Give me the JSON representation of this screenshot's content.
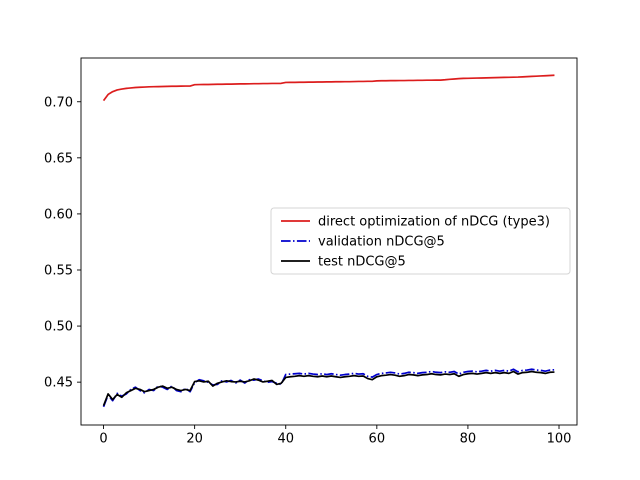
{
  "figure": {
    "background": "#ffffff",
    "axes_color": "#000000"
  },
  "chart_data": {
    "type": "line",
    "title": "",
    "xlabel": "",
    "ylabel": "",
    "grid": false,
    "xlim": [
      -4.95,
      103.95
    ],
    "ylim": [
      0.4118,
      0.739
    ],
    "x_ticks": [
      0,
      20,
      40,
      60,
      80,
      100
    ],
    "x_tick_labels": [
      "0",
      "20",
      "40",
      "60",
      "80",
      "100"
    ],
    "y_ticks": [
      0.45,
      0.5,
      0.55,
      0.6,
      0.65,
      0.7
    ],
    "y_tick_labels": [
      "0.45",
      "0.50",
      "0.55",
      "0.60",
      "0.65",
      "0.70"
    ],
    "legend": {
      "position": "center-right",
      "border_color": "#d5d5d5",
      "background": "#ffffff"
    },
    "x": [
      0,
      1,
      2,
      3,
      4,
      5,
      6,
      7,
      8,
      9,
      10,
      11,
      12,
      13,
      14,
      15,
      16,
      17,
      18,
      19,
      20,
      21,
      22,
      23,
      24,
      25,
      26,
      27,
      28,
      29,
      30,
      31,
      32,
      33,
      34,
      35,
      36,
      37,
      38,
      39,
      40,
      41,
      42,
      43,
      44,
      45,
      46,
      47,
      48,
      49,
      50,
      51,
      52,
      53,
      54,
      55,
      56,
      57,
      58,
      59,
      60,
      61,
      62,
      63,
      64,
      65,
      66,
      67,
      68,
      69,
      70,
      71,
      72,
      73,
      74,
      75,
      76,
      77,
      78,
      79,
      80,
      81,
      82,
      83,
      84,
      85,
      86,
      87,
      88,
      89,
      90,
      91,
      92,
      93,
      94,
      95,
      96,
      97,
      98,
      99
    ],
    "series": [
      {
        "name": "direct optimization of nDCG (type3)",
        "color": "#dc1d1d",
        "style": "solid",
        "values": [
          0.701,
          0.7065,
          0.709,
          0.7105,
          0.7113,
          0.7119,
          0.7123,
          0.7127,
          0.7129,
          0.7131,
          0.7133,
          0.7134,
          0.7135,
          0.7136,
          0.7137,
          0.7138,
          0.7138,
          0.7139,
          0.714,
          0.714,
          0.7152,
          0.7153,
          0.7154,
          0.7154,
          0.7155,
          0.7156,
          0.7156,
          0.7157,
          0.7157,
          0.7158,
          0.7159,
          0.7159,
          0.716,
          0.7161,
          0.7161,
          0.7162,
          0.7162,
          0.7163,
          0.7163,
          0.7164,
          0.7172,
          0.7173,
          0.7173,
          0.7174,
          0.7174,
          0.7175,
          0.7175,
          0.7176,
          0.7176,
          0.7177,
          0.7177,
          0.7178,
          0.7178,
          0.7179,
          0.7179,
          0.718,
          0.7181,
          0.7181,
          0.7182,
          0.7182,
          0.7186,
          0.7187,
          0.7187,
          0.7188,
          0.7188,
          0.7189,
          0.7189,
          0.719,
          0.719,
          0.7191,
          0.7191,
          0.7192,
          0.7192,
          0.7193,
          0.7193,
          0.7196,
          0.72,
          0.7203,
          0.7206,
          0.7208,
          0.7209,
          0.721,
          0.7211,
          0.7212,
          0.7213,
          0.7214,
          0.7215,
          0.7216,
          0.7217,
          0.7218,
          0.7219,
          0.722,
          0.7222,
          0.7224,
          0.7226,
          0.7228,
          0.723,
          0.7232,
          0.7234,
          0.7236
        ]
      },
      {
        "name": "validation nDCG@5",
        "color": "#0000cd",
        "style": "dashdot",
        "values": [
          0.428,
          0.4385,
          0.4335,
          0.44,
          0.4375,
          0.4395,
          0.4435,
          0.4455,
          0.4425,
          0.4405,
          0.4435,
          0.4425,
          0.4465,
          0.4455,
          0.4435,
          0.4465,
          0.4425,
          0.4415,
          0.4445,
          0.4415,
          0.4495,
          0.4522,
          0.4512,
          0.4498,
          0.4475,
          0.448,
          0.4512,
          0.4502,
          0.4515,
          0.4492,
          0.4518,
          0.4492,
          0.4522,
          0.4518,
          0.4528,
          0.4512,
          0.4498,
          0.4505,
          0.449,
          0.448,
          0.4568,
          0.4572,
          0.4575,
          0.4578,
          0.4572,
          0.4578,
          0.4572,
          0.4568,
          0.4575,
          0.4568,
          0.4575,
          0.4568,
          0.4562,
          0.4568,
          0.4572,
          0.4578,
          0.4572,
          0.4575,
          0.4552,
          0.4545,
          0.4568,
          0.4578,
          0.4582,
          0.4588,
          0.4582,
          0.4572,
          0.4578,
          0.4588,
          0.4585,
          0.4578,
          0.4585,
          0.4588,
          0.4595,
          0.4588,
          0.4585,
          0.4592,
          0.4588,
          0.4595,
          0.4572,
          0.4588,
          0.4595,
          0.4598,
          0.4592,
          0.4598,
          0.4605,
          0.4598,
          0.4605,
          0.4598,
          0.4605,
          0.4598,
          0.4615,
          0.4592,
          0.4605,
          0.4608,
          0.4615,
          0.4608,
          0.4605,
          0.4598,
          0.4608,
          0.461
        ]
      },
      {
        "name": "test nDCG@5",
        "color": "#000000",
        "style": "solid",
        "values": [
          0.429,
          0.4395,
          0.4345,
          0.439,
          0.4365,
          0.4405,
          0.4425,
          0.4445,
          0.4435,
          0.4415,
          0.4425,
          0.4435,
          0.4455,
          0.4465,
          0.4445,
          0.4455,
          0.4435,
          0.4425,
          0.4435,
          0.4425,
          0.4505,
          0.4512,
          0.4502,
          0.4508,
          0.4465,
          0.449,
          0.4502,
          0.4512,
          0.4505,
          0.4502,
          0.4508,
          0.4502,
          0.4512,
          0.4528,
          0.4518,
          0.4502,
          0.4508,
          0.4515,
          0.448,
          0.449,
          0.4542,
          0.4548,
          0.4552,
          0.4558,
          0.4552,
          0.4558,
          0.4552,
          0.4548,
          0.4555,
          0.4548,
          0.4555,
          0.4548,
          0.4542,
          0.4548,
          0.4552,
          0.4558,
          0.4552,
          0.4555,
          0.4532,
          0.4522,
          0.4548,
          0.4558,
          0.4562,
          0.4568,
          0.4562,
          0.4552,
          0.4558,
          0.4568,
          0.4565,
          0.4558,
          0.4565,
          0.4568,
          0.4575,
          0.4568,
          0.4565,
          0.4572,
          0.4568,
          0.4575,
          0.4552,
          0.4568,
          0.4575,
          0.4578,
          0.4572,
          0.4578,
          0.4585,
          0.4578,
          0.4585,
          0.4578,
          0.4585,
          0.4578,
          0.4595,
          0.4572,
          0.4585,
          0.4588,
          0.4595,
          0.4588,
          0.4585,
          0.4578,
          0.4588,
          0.459
        ]
      }
    ]
  }
}
